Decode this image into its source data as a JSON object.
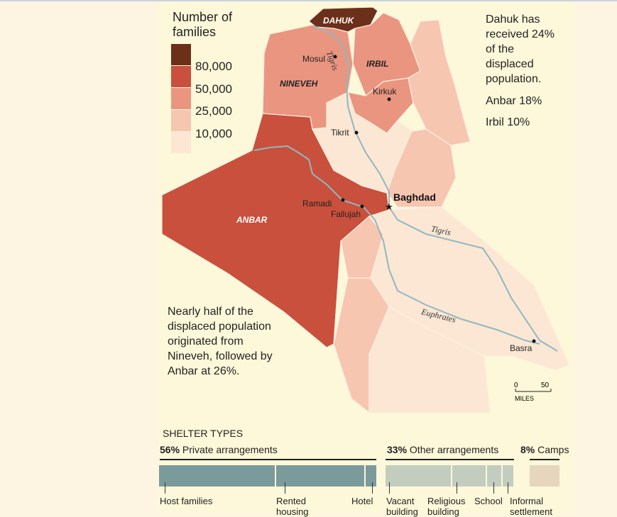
{
  "legend": {
    "title": "Number of families",
    "levels": [
      "80,000",
      "50,000",
      "25,000",
      "10,000"
    ],
    "colors": {
      "above_80000": "#6b2f1a",
      "50000_80000": "#c9503c",
      "25000_50000": "#ea9580",
      "10000_25000": "#f6c6b0",
      "below_10000": "#fbe7d3"
    }
  },
  "provinces": {
    "dahuk": "DAHUK",
    "irbil": "IRBIL",
    "nineveh": "NINEVEH",
    "anbar": "ANBAR"
  },
  "cities": {
    "mosul": "Mosul",
    "kirkuk": "Kirkuk",
    "tikrit": "Tikrit",
    "baghdad": "Baghdad",
    "ramadi": "Ramadi",
    "fallujah": "Fallujah",
    "basra": "Basra"
  },
  "rivers": {
    "tigris_north": "Tigris",
    "tigris_south": "Tigris",
    "euphrates": "Euphrates"
  },
  "notes": {
    "destination": "Dahuk has received 24% of the displaced population.",
    "anbar": "Anbar 18%",
    "irbil": "Irbil 10%",
    "origin": "Nearly half of the displaced population originated from Nineveh, followed by Anbar at 26%."
  },
  "scale": {
    "zero": "0",
    "fifty": "50",
    "unit": "MILES"
  },
  "shelter": {
    "title": "SHELTER TYPES",
    "groups": [
      {
        "pct": "56%",
        "label": "Private arrangements",
        "color": "#7b9a9c"
      },
      {
        "pct": "33%",
        "label": "Other arrangements",
        "color": "#c3cdbf"
      },
      {
        "pct": "8%",
        "label": "Camps",
        "color": "#e5d6bd"
      }
    ],
    "items": [
      "Host families",
      "Rented housing",
      "Hotel",
      "Vacant building",
      "Religious building",
      "School",
      "Informal settlement"
    ]
  },
  "colors": {
    "river": "#8fb8c2",
    "background": "#fdf8d9"
  }
}
